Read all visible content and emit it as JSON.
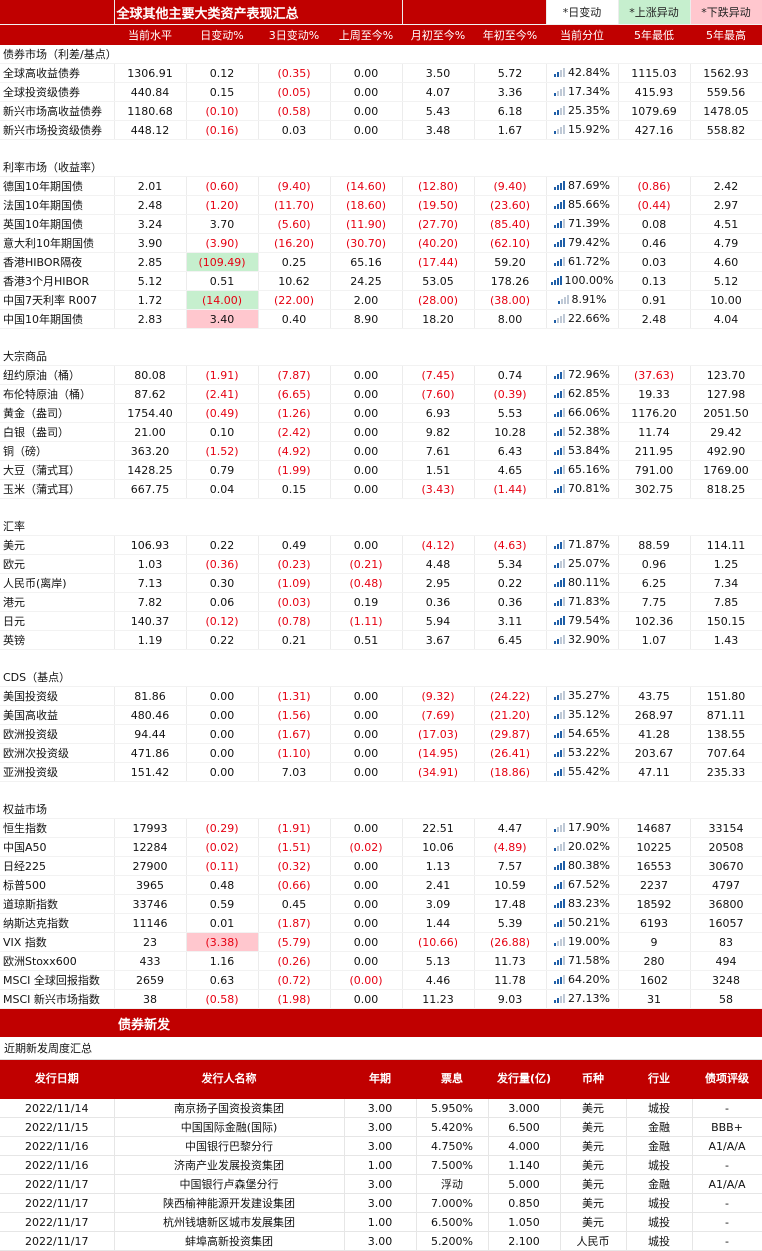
{
  "title": "全球其他主要大类资产表现汇总",
  "legend": {
    "day_change": "*日变动",
    "up": "*上涨异动",
    "down": "*下跌异动"
  },
  "headers": [
    "当前水平",
    "日变动%",
    "3日变动%",
    "上周至今%",
    "月初至今%",
    "年初至今%",
    "当前分位",
    "5年最低",
    "5年最高"
  ],
  "sections": [
    {
      "name": "债券市场（利差/基点）",
      "rows": [
        {
          "name": "全球高收益债券",
          "vals": [
            "1306.91",
            "0.12",
            "(0.35)",
            "0.00",
            "3.50",
            "5.72",
            "42.84%",
            "1115.03",
            "1562.93"
          ]
        },
        {
          "name": "全球投资级债券",
          "vals": [
            "440.84",
            "0.15",
            "(0.05)",
            "0.00",
            "4.07",
            "3.36",
            "17.34%",
            "415.93",
            "559.56"
          ]
        },
        {
          "name": "新兴市场高收益债券",
          "vals": [
            "1180.68",
            "(0.10)",
            "(0.58)",
            "0.00",
            "5.43",
            "6.18",
            "25.35%",
            "1079.69",
            "1478.05"
          ]
        },
        {
          "name": "新兴市场投资级债券",
          "vals": [
            "448.12",
            "(0.16)",
            "0.03",
            "0.00",
            "3.48",
            "1.67",
            "15.92%",
            "427.16",
            "558.82"
          ]
        }
      ]
    },
    {
      "name": "利率市场（收益率）",
      "rows": [
        {
          "name": "德国10年期国债",
          "vals": [
            "2.01",
            "(0.60)",
            "(9.40)",
            "(14.60)",
            "(12.80)",
            "(9.40)",
            "87.69%",
            "(0.86)",
            "2.42"
          ]
        },
        {
          "name": "法国10年期国债",
          "vals": [
            "2.48",
            "(1.20)",
            "(11.70)",
            "(18.60)",
            "(19.50)",
            "(23.60)",
            "85.66%",
            "(0.44)",
            "2.97"
          ]
        },
        {
          "name": "英国10年期国债",
          "vals": [
            "3.24",
            "3.70",
            "(5.60)",
            "(11.90)",
            "(27.70)",
            "(85.40)",
            "71.39%",
            "0.08",
            "4.51"
          ]
        },
        {
          "name": "意大利10年期国债",
          "vals": [
            "3.90",
            "(3.90)",
            "(16.20)",
            "(30.70)",
            "(40.20)",
            "(62.10)",
            "79.42%",
            "0.46",
            "4.79"
          ]
        },
        {
          "name": "香港HIBOR隔夜",
          "vals": [
            "2.85",
            "(109.49)",
            "0.25",
            "65.16",
            "(17.44)",
            "59.20",
            "61.72%",
            "0.03",
            "4.60"
          ],
          "hl": "up"
        },
        {
          "name": "香港3个月HIBOR",
          "vals": [
            "5.12",
            "0.51",
            "10.62",
            "24.25",
            "53.05",
            "178.26",
            "100.00%",
            "0.13",
            "5.12"
          ]
        },
        {
          "name": "中国7天利率 R007",
          "vals": [
            "1.72",
            "(14.00)",
            "(22.00)",
            "2.00",
            "(28.00)",
            "(38.00)",
            "8.91%",
            "0.91",
            "10.00"
          ],
          "hl": "up"
        },
        {
          "name": "中国10年期国债",
          "vals": [
            "2.83",
            "3.40",
            "0.40",
            "8.90",
            "18.20",
            "8.00",
            "22.66%",
            "2.48",
            "4.04"
          ],
          "hl": "down"
        }
      ]
    },
    {
      "name": "大宗商品",
      "rows": [
        {
          "name": "纽约原油（桶）",
          "vals": [
            "80.08",
            "(1.91)",
            "(7.87)",
            "0.00",
            "(7.45)",
            "0.74",
            "72.96%",
            "(37.63)",
            "123.70"
          ]
        },
        {
          "name": "布伦特原油（桶）",
          "vals": [
            "87.62",
            "(2.41)",
            "(6.65)",
            "0.00",
            "(7.60)",
            "(0.39)",
            "62.85%",
            "19.33",
            "127.98"
          ]
        },
        {
          "name": "黄金（盎司）",
          "vals": [
            "1754.40",
            "(0.49)",
            "(1.26)",
            "0.00",
            "6.93",
            "5.53",
            "66.06%",
            "1176.20",
            "2051.50"
          ]
        },
        {
          "name": "白银（盎司）",
          "vals": [
            "21.00",
            "0.10",
            "(2.42)",
            "0.00",
            "9.82",
            "10.28",
            "52.38%",
            "11.74",
            "29.42"
          ]
        },
        {
          "name": "铜（磅）",
          "vals": [
            "363.20",
            "(1.52)",
            "(4.92)",
            "0.00",
            "7.61",
            "6.43",
            "53.84%",
            "211.95",
            "492.90"
          ]
        },
        {
          "name": "大豆（蒲式耳）",
          "vals": [
            "1428.25",
            "0.79",
            "(1.99)",
            "0.00",
            "1.51",
            "4.65",
            "65.16%",
            "791.00",
            "1769.00"
          ]
        },
        {
          "name": "玉米（蒲式耳）",
          "vals": [
            "667.75",
            "0.04",
            "0.15",
            "0.00",
            "(3.43)",
            "(1.44)",
            "70.81%",
            "302.75",
            "818.25"
          ]
        }
      ]
    },
    {
      "name": "汇率",
      "rows": [
        {
          "name": "美元",
          "vals": [
            "106.93",
            "0.22",
            "0.49",
            "0.00",
            "(4.12)",
            "(4.63)",
            "71.87%",
            "88.59",
            "114.11"
          ]
        },
        {
          "name": "欧元",
          "vals": [
            "1.03",
            "(0.36)",
            "(0.23)",
            "(0.21)",
            "4.48",
            "5.34",
            "25.07%",
            "0.96",
            "1.25"
          ]
        },
        {
          "name": "人民币(离岸)",
          "vals": [
            "7.13",
            "0.30",
            "(1.09)",
            "(0.48)",
            "2.95",
            "0.22",
            "80.11%",
            "6.25",
            "7.34"
          ]
        },
        {
          "name": "港元",
          "vals": [
            "7.82",
            "0.06",
            "(0.03)",
            "0.19",
            "0.36",
            "0.36",
            "71.83%",
            "7.75",
            "7.85"
          ]
        },
        {
          "name": "日元",
          "vals": [
            "140.37",
            "(0.12)",
            "(0.78)",
            "(1.11)",
            "5.94",
            "3.11",
            "79.54%",
            "102.36",
            "150.15"
          ]
        },
        {
          "name": "英镑",
          "vals": [
            "1.19",
            "0.22",
            "0.21",
            "0.51",
            "3.67",
            "6.45",
            "32.90%",
            "1.07",
            "1.43"
          ]
        }
      ]
    },
    {
      "name": "CDS（基点）",
      "rows": [
        {
          "name": "美国投资级",
          "vals": [
            "81.86",
            "0.00",
            "(1.31)",
            "0.00",
            "(9.32)",
            "(24.22)",
            "35.27%",
            "43.75",
            "151.80"
          ]
        },
        {
          "name": "美国高收益",
          "vals": [
            "480.46",
            "0.00",
            "(1.56)",
            "0.00",
            "(7.69)",
            "(21.20)",
            "35.12%",
            "268.97",
            "871.11"
          ]
        },
        {
          "name": "欧洲投资级",
          "vals": [
            "94.44",
            "0.00",
            "(1.67)",
            "0.00",
            "(17.03)",
            "(29.87)",
            "54.65%",
            "41.28",
            "138.55"
          ]
        },
        {
          "name": "欧洲次投资级",
          "vals": [
            "471.86",
            "0.00",
            "(1.10)",
            "0.00",
            "(14.95)",
            "(26.41)",
            "53.22%",
            "203.67",
            "707.64"
          ]
        },
        {
          "name": "亚洲投资级",
          "vals": [
            "151.42",
            "0.00",
            "7.03",
            "0.00",
            "(34.91)",
            "(18.86)",
            "55.42%",
            "47.11",
            "235.33"
          ]
        }
      ]
    },
    {
      "name": "权益市场",
      "rows": [
        {
          "name": "恒生指数",
          "vals": [
            "17993",
            "(0.29)",
            "(1.91)",
            "0.00",
            "22.51",
            "4.47",
            "17.90%",
            "14687",
            "33154"
          ]
        },
        {
          "name": "中国A50",
          "vals": [
            "12284",
            "(0.02)",
            "(1.51)",
            "(0.02)",
            "10.06",
            "(4.89)",
            "20.02%",
            "10225",
            "20508"
          ]
        },
        {
          "name": "日经225",
          "vals": [
            "27900",
            "(0.11)",
            "(0.32)",
            "0.00",
            "1.13",
            "7.57",
            "80.38%",
            "16553",
            "30670"
          ]
        },
        {
          "name": "标普500",
          "vals": [
            "3965",
            "0.48",
            "(0.66)",
            "0.00",
            "2.41",
            "10.59",
            "67.52%",
            "2237",
            "4797"
          ]
        },
        {
          "name": "道琼斯指数",
          "vals": [
            "33746",
            "0.59",
            "0.45",
            "0.00",
            "3.09",
            "17.48",
            "83.23%",
            "18592",
            "36800"
          ]
        },
        {
          "name": "纳斯达克指数",
          "vals": [
            "11146",
            "0.01",
            "(1.87)",
            "0.00",
            "1.44",
            "5.39",
            "50.21%",
            "6193",
            "16057"
          ]
        },
        {
          "name": "VIX 指数",
          "vals": [
            "23",
            "(3.38)",
            "(5.79)",
            "0.00",
            "(10.66)",
            "(26.88)",
            "19.00%",
            "9",
            "83"
          ],
          "hl": "down"
        },
        {
          "name": "欧洲Stoxx600",
          "vals": [
            "433",
            "1.16",
            "(0.26)",
            "0.00",
            "5.13",
            "11.73",
            "71.58%",
            "280",
            "494"
          ]
        },
        {
          "name": "MSCI 全球回报指数",
          "vals": [
            "2659",
            "0.63",
            "(0.72)",
            "(0.00)",
            "4.46",
            "11.78",
            "64.20%",
            "1602",
            "3248"
          ]
        },
        {
          "name": "MSCI 新兴市场指数",
          "vals": [
            "38",
            "(0.58)",
            "(1.98)",
            "0.00",
            "11.23",
            "9.03",
            "27.13%",
            "31",
            "58"
          ]
        }
      ]
    }
  ],
  "bond_new_issues": {
    "title": "债券新发",
    "subtitle": "近期新发周度汇总",
    "headers": [
      "发行日期",
      "发行人名称",
      "年期",
      "票息",
      "发行量(亿)",
      "币种",
      "行业",
      "债项评级"
    ],
    "rows": [
      [
        "2022/11/14",
        "南京扬子国资投资集团",
        "3.00",
        "5.950%",
        "3.000",
        "美元",
        "城投",
        "-"
      ],
      [
        "2022/11/15",
        "中国国际金融(国际)",
        "3.00",
        "5.420%",
        "6.500",
        "美元",
        "金融",
        "BBB+"
      ],
      [
        "2022/11/16",
        "中国银行巴黎分行",
        "3.00",
        "4.750%",
        "4.000",
        "美元",
        "金融",
        "A1/A/A"
      ],
      [
        "2022/11/16",
        "济南产业发展投资集团",
        "1.00",
        "7.500%",
        "1.140",
        "美元",
        "城投",
        "-"
      ],
      [
        "2022/11/17",
        "中国银行卢森堡分行",
        "3.00",
        "浮动",
        "5.000",
        "美元",
        "金融",
        "A1/A/A"
      ],
      [
        "2022/11/17",
        "陕西榆神能源开发建设集团",
        "3.00",
        "7.000%",
        "0.850",
        "美元",
        "城投",
        "-"
      ],
      [
        "2022/11/17",
        "杭州钱塘新区城市发展集团",
        "1.00",
        "6.500%",
        "1.050",
        "美元",
        "城投",
        "-"
      ],
      [
        "2022/11/17",
        "蚌埠高新投资集团",
        "3.00",
        "5.200%",
        "2.100",
        "人民币",
        "城投",
        "-"
      ]
    ]
  }
}
